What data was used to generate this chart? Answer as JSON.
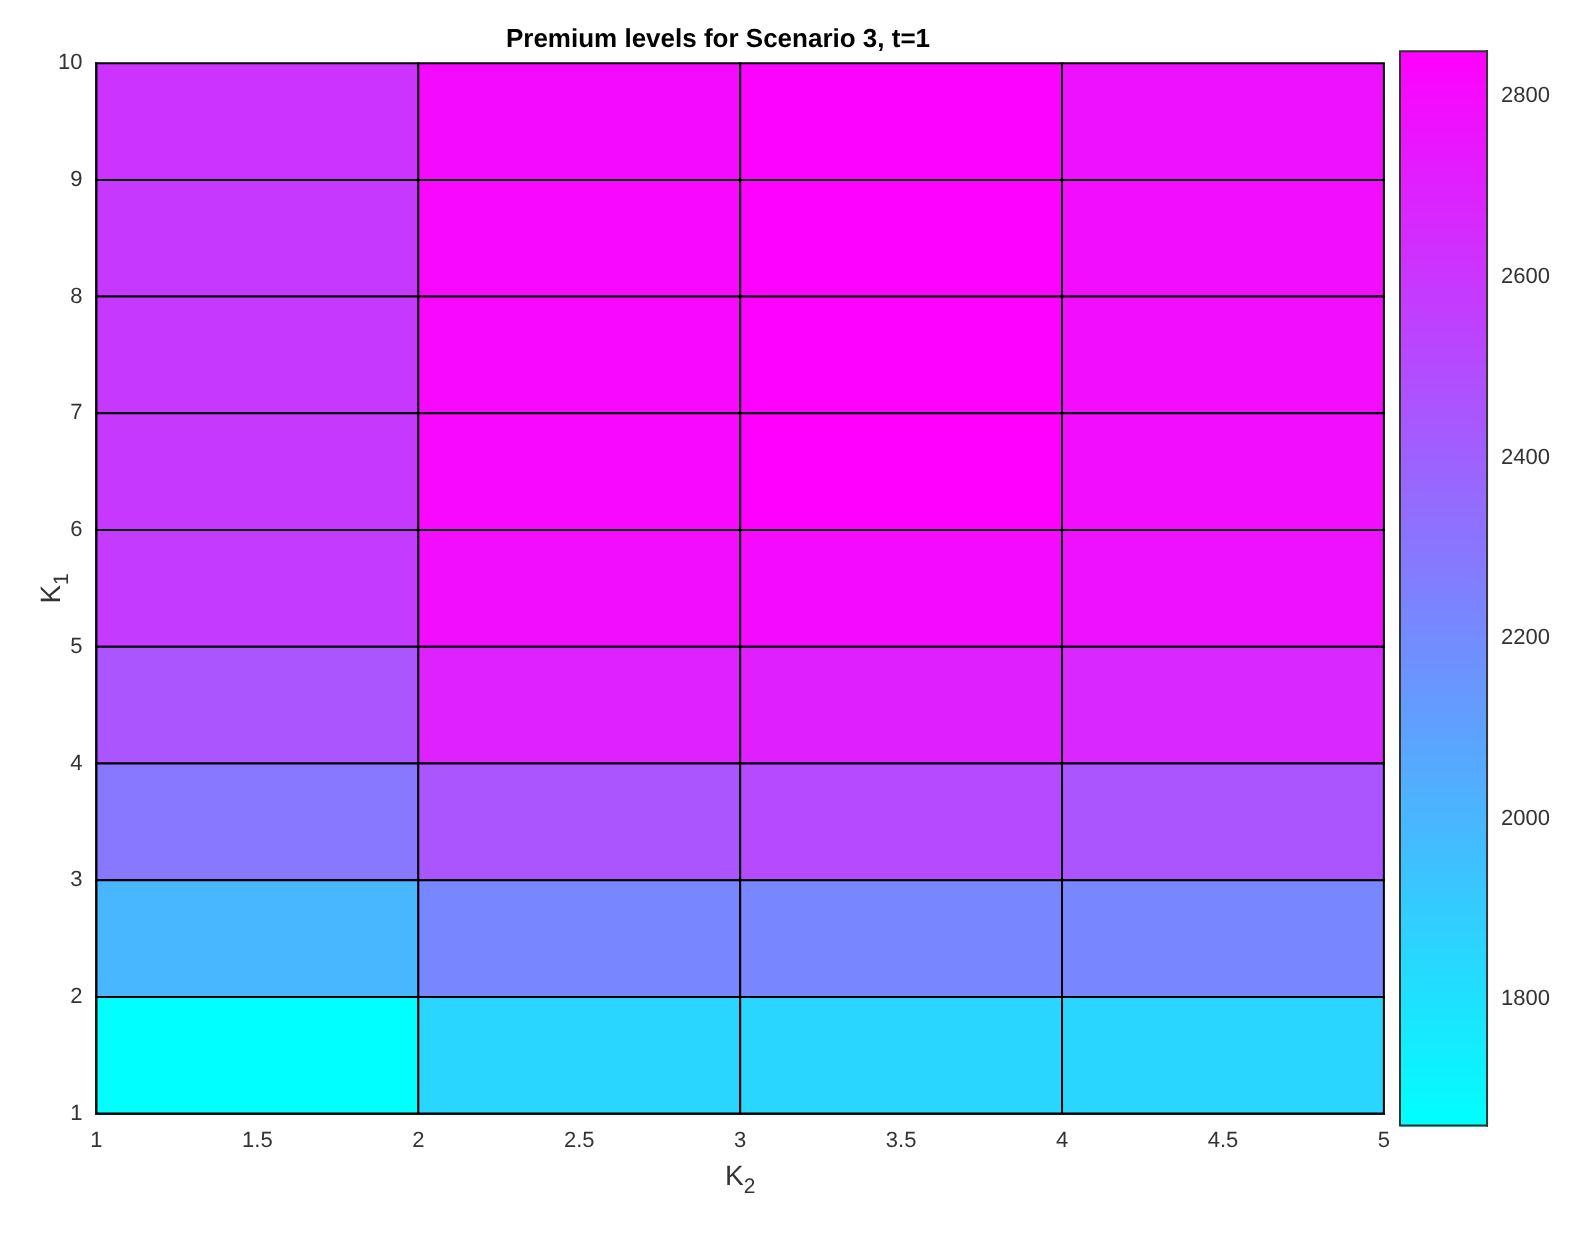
{
  "chart_data": {
    "type": "heatmap",
    "title": "Premium levels for Scenario 3, t=1",
    "xlabel": "K$_{2}$",
    "ylabel": "K$_{1}$",
    "xlim": [
      1,
      5
    ],
    "xticks": [
      1,
      1.5,
      2,
      2.5,
      3,
      3.5,
      4,
      4.5,
      5
    ],
    "ylim": [
      1,
      10
    ],
    "yticks": [
      1,
      2,
      3,
      4,
      5,
      6,
      7,
      8,
      9,
      10
    ],
    "cells": [
      [
        2610,
        2800,
        2830,
        2770
      ],
      [
        2590,
        2815,
        2840,
        2790
      ],
      [
        2590,
        2815,
        2840,
        2790
      ],
      [
        2590,
        2815,
        2850,
        2790
      ],
      [
        2575,
        2790,
        2800,
        2770
      ],
      [
        2455,
        2695,
        2705,
        2670
      ],
      [
        2290,
        2455,
        2505,
        2455
      ],
      [
        1995,
        2220,
        2220,
        2220
      ],
      [
        1660,
        1850,
        1850,
        1850
      ]
    ],
    "clim": [
      1660,
      2850
    ],
    "cticks": [
      1800,
      2000,
      2200,
      2400,
      2600,
      2800
    ]
  }
}
